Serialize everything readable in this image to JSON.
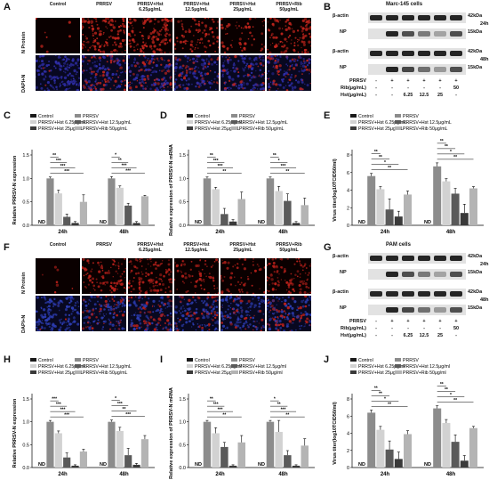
{
  "figure": {
    "panel_labels": [
      "A",
      "B",
      "C",
      "D",
      "E",
      "F",
      "G",
      "H",
      "I",
      "J"
    ]
  },
  "microscopy": {
    "top": {
      "columns": [
        "Control",
        "PRRSV",
        "PRRSV+Hst 6.25μg/mL",
        "PRRSV+Hst 12.5μg/mL",
        "PRRSV+Hst 25μg/mL",
        "PRRSV+Rib 50μg/mL"
      ],
      "rows": [
        "N Protein",
        "DAPI+N"
      ],
      "colors": {
        "red": "#c0241c",
        "blue": "#2f2ea8"
      },
      "red_intensity": [
        0.05,
        1.0,
        0.9,
        0.6,
        0.4,
        0.8
      ]
    },
    "bottom": {
      "columns": [
        "Control",
        "PRRSV",
        "PRRSV+Hst 6.25μg/mL",
        "PRRSV+Hst 12.5μg/mL",
        "PRRSV+Hst 25μg/mL",
        "PRRSV+Rib 50μg/mL"
      ],
      "rows": [
        "N Protein",
        "DAPI+N"
      ],
      "colors": {
        "red": "#b8201a",
        "blue": "#2c3cb0"
      },
      "red_intensity": [
        0.05,
        0.7,
        0.8,
        0.5,
        0.4,
        0.7
      ]
    }
  },
  "western": {
    "top": {
      "title": "Marc-145 cells",
      "bands": [
        "β-actin",
        "NP",
        "β-actin",
        "NP"
      ],
      "kda": [
        "42kDa",
        "15kDa",
        "42kDa",
        "15kDa"
      ],
      "times": [
        "24h",
        "48h"
      ],
      "row_labels": [
        "PRRSV",
        "Rib(μg/mL)",
        "Hst(μg/mL)"
      ],
      "prrsv": [
        "-",
        "+",
        "+",
        "+",
        "+",
        "+"
      ],
      "rib": [
        "-",
        "-",
        "-",
        "-",
        "-",
        "50"
      ],
      "hst": [
        "-",
        "-",
        "6.25",
        "12.5",
        "25",
        "-"
      ],
      "np_intensity_24h": [
        0.0,
        0.9,
        0.7,
        0.5,
        0.3,
        0.7
      ],
      "np_intensity_48h": [
        0.0,
        0.9,
        0.75,
        0.55,
        0.35,
        0.7
      ]
    },
    "bottom": {
      "title": "PAM cells",
      "bands": [
        "β-actin",
        "NP",
        "β-actin",
        "NP"
      ],
      "kda": [
        "42kDa",
        "15kDa",
        "42kDa",
        "15kDa"
      ],
      "times": [
        "24h",
        "48h"
      ],
      "row_labels": [
        "PRRSV",
        "Rib(μg/mL)",
        "Hst(μg/mL)"
      ],
      "prrsv": [
        "-",
        "+",
        "+",
        "+",
        "+",
        "+"
      ],
      "rib": [
        "-",
        "-",
        "-",
        "-",
        "-",
        "50"
      ],
      "hst": [
        "-",
        "-",
        "6.25",
        "12.5",
        "25",
        "-"
      ],
      "np_intensity_24h": [
        0.0,
        0.9,
        0.7,
        0.5,
        0.3,
        0.7
      ],
      "np_intensity_48h": [
        0.0,
        0.9,
        0.75,
        0.55,
        0.35,
        0.7
      ]
    }
  },
  "chart_data": [
    {
      "id": "C",
      "type": "bar",
      "ylabel": "Relative PRRSV-N expression",
      "categories": [
        "24h",
        "48h"
      ],
      "ylim": [
        0,
        1.5
      ],
      "yticks": [
        0.0,
        0.5,
        1.0,
        1.5
      ],
      "legend": [
        "Control",
        "PRRSV",
        "PRRSV+Hst 6.25μg/mL",
        "PRRSV+Hst 12.5μg/mL",
        "PRRSV+Hst 25μg/mL",
        "PRRSV+Rib 50μg/mL"
      ],
      "nd_label": "ND",
      "series": [
        {
          "name": "Control",
          "values": [
            0,
            0
          ],
          "errors": [
            0,
            0
          ]
        },
        {
          "name": "PRRSV",
          "values": [
            1.0,
            1.0
          ],
          "errors": [
            0.03,
            0.04
          ]
        },
        {
          "name": "PRRSV+Hst 6.25μg/mL",
          "values": [
            0.68,
            0.8
          ],
          "errors": [
            0.07,
            0.04
          ]
        },
        {
          "name": "PRRSV+Hst 12.5μg/mL",
          "values": [
            0.18,
            0.42
          ],
          "errors": [
            0.06,
            0.05
          ]
        },
        {
          "name": "PRRSV+Hst 25μg/mL",
          "values": [
            0.05,
            0.05
          ],
          "errors": [
            0.03,
            0.03
          ]
        },
        {
          "name": "PRRSV+Rib 50μg/mL",
          "values": [
            0.5,
            0.62
          ],
          "errors": [
            0.15,
            0.02
          ]
        }
      ],
      "sig": [
        [
          "***",
          "***",
          "***",
          "**"
        ],
        [
          "***",
          "***",
          "**",
          "*"
        ]
      ]
    },
    {
      "id": "D",
      "type": "bar",
      "ylabel": "Relative expression of PRRSV-N mRNA",
      "categories": [
        "24h",
        "48h"
      ],
      "ylim": [
        0,
        1.5
      ],
      "yticks": [
        0.0,
        0.5,
        1.0,
        1.5
      ],
      "legend": [
        "Control",
        "PRRSV",
        "PRRSV+Hst 6.25μg/mL",
        "PRRSV+Hst 12.5μg/mL",
        "PRRSV+Hst 25μg/mL",
        "PRRSV+Rib 50μg/mL"
      ],
      "nd_label": "ND",
      "series": [
        {
          "name": "Control",
          "values": [
            0,
            0
          ],
          "errors": [
            0,
            0
          ]
        },
        {
          "name": "PRRSV",
          "values": [
            1.0,
            1.0
          ],
          "errors": [
            0.03,
            0.03
          ]
        },
        {
          "name": "PRRSV+Hst 6.25μg/mL",
          "values": [
            0.77,
            0.73
          ],
          "errors": [
            0.04,
            0.1
          ]
        },
        {
          "name": "PRRSV+Hst 12.5μg/mL",
          "values": [
            0.24,
            0.52
          ],
          "errors": [
            0.12,
            0.15
          ]
        },
        {
          "name": "PRRSV+Hst 25μg/mL",
          "values": [
            0.08,
            0.05
          ],
          "errors": [
            0.04,
            0.03
          ]
        },
        {
          "name": "PRRSV+Rib 50μg/mL",
          "values": [
            0.56,
            0.43
          ],
          "errors": [
            0.15,
            0.15
          ]
        }
      ],
      "sig": [
        [
          "**",
          "***",
          "***",
          "**"
        ],
        [
          "**",
          "***",
          "*",
          "**"
        ]
      ]
    },
    {
      "id": "E",
      "type": "bar",
      "ylabel": "Virus titer(log10TCID50/ml)",
      "categories": [
        "24h",
        "48h"
      ],
      "ylim": [
        0,
        8
      ],
      "yticks": [
        0,
        2,
        4,
        6,
        8
      ],
      "legend": [
        "Control",
        "PRRSV",
        "PRRSV+Hst 6.25μg/mL",
        "PRRSV+Hst 12.5μg/mL",
        "PRRSV+Hst 25μg/mL",
        "PRRSV+Rib 50μg/mL"
      ],
      "nd_label": "ND",
      "series": [
        {
          "name": "Control",
          "values": [
            0,
            0
          ],
          "errors": [
            0,
            0
          ]
        },
        {
          "name": "PRRSV",
          "values": [
            5.6,
            6.7
          ],
          "errors": [
            0.3,
            0.4
          ]
        },
        {
          "name": "PRRSV+Hst 6.25μg/mL",
          "values": [
            4.1,
            5.0
          ],
          "errors": [
            0.3,
            0.3
          ]
        },
        {
          "name": "PRRSV+Hst 12.5μg/mL",
          "values": [
            1.8,
            3.6
          ],
          "errors": [
            1.2,
            0.6
          ]
        },
        {
          "name": "PRRSV+Hst 25μg/mL",
          "values": [
            1.0,
            1.4
          ],
          "errors": [
            0.6,
            1.0
          ]
        },
        {
          "name": "PRRSV+Rib 50μg/mL",
          "values": [
            3.5,
            4.2
          ],
          "errors": [
            0.4,
            0.2
          ]
        }
      ],
      "sig": [
        [
          "**",
          "*",
          "**",
          "**"
        ],
        [
          "**",
          "*",
          "**",
          "**"
        ]
      ]
    },
    {
      "id": "H",
      "type": "bar",
      "ylabel": "Relative PRRSV-N expression",
      "categories": [
        "24h",
        "48h"
      ],
      "ylim": [
        0,
        1.5
      ],
      "yticks": [
        0.0,
        0.5,
        1.0,
        1.5
      ],
      "legend": [
        "Control",
        "PRRSV",
        "PRRSV+Hst 6.25μg/mL",
        "PRRSV+Hst 12.5μg/mL",
        "PRRSV+Hst 25μg/mL",
        "PRRSV+Rib 50μg/mL"
      ],
      "nd_label": "ND",
      "series": [
        {
          "name": "Control",
          "values": [
            0,
            0
          ],
          "errors": [
            0,
            0
          ]
        },
        {
          "name": "PRRSV",
          "values": [
            1.0,
            1.0
          ],
          "errors": [
            0.03,
            0.04
          ]
        },
        {
          "name": "PRRSV+Hst 6.25μg/mL",
          "values": [
            0.75,
            0.8
          ],
          "errors": [
            0.05,
            0.08
          ]
        },
        {
          "name": "PRRSV+Hst 12.5μg/mL",
          "values": [
            0.22,
            0.27
          ],
          "errors": [
            0.1,
            0.15
          ]
        },
        {
          "name": "PRRSV+Hst 25μg/mL",
          "values": [
            0.04,
            0.06
          ],
          "errors": [
            0.02,
            0.03
          ]
        },
        {
          "name": "PRRSV+Rib 50μg/mL",
          "values": [
            0.35,
            0.62
          ],
          "errors": [
            0.05,
            0.08
          ]
        }
      ],
      "sig": [
        [
          "***",
          "***",
          "***",
          "***"
        ],
        [
          "***",
          "**",
          "***",
          "*"
        ]
      ]
    },
    {
      "id": "I",
      "type": "bar",
      "ylabel": "Relative expression of PRRSV-N mRNA",
      "categories": [
        "24h",
        "48h"
      ],
      "ylim": [
        0,
        1.5
      ],
      "yticks": [
        0.0,
        0.5,
        1.0,
        1.5
      ],
      "legend": [
        "Control",
        "PRRSV",
        "PRRSV+Hst 6.25μg/ml",
        "PRRSV+Hst 12.5μg/ml",
        "PRRSV+Hst 25μg/ml",
        "PRRSV+Rib 50μg/ml"
      ],
      "nd_label": "ND",
      "series": [
        {
          "name": "Control",
          "values": [
            0,
            0
          ],
          "errors": [
            0,
            0
          ]
        },
        {
          "name": "PRRSV",
          "values": [
            1.0,
            1.0
          ],
          "errors": [
            0.03,
            0.03
          ]
        },
        {
          "name": "PRRSV+Hst 6.25μg/ml",
          "values": [
            0.75,
            0.78
          ],
          "errors": [
            0.12,
            0.25
          ]
        },
        {
          "name": "PRRSV+Hst 12.5μg/ml",
          "values": [
            0.45,
            0.27
          ],
          "errors": [
            0.1,
            0.1
          ]
        },
        {
          "name": "PRRSV+Hst 25μg/ml",
          "values": [
            0.04,
            0.04
          ],
          "errors": [
            0.02,
            0.02
          ]
        },
        {
          "name": "PRRSV+Rib 50μg/ml",
          "values": [
            0.55,
            0.48
          ],
          "errors": [
            0.15,
            0.15
          ]
        }
      ],
      "sig": [
        [
          "**",
          "***",
          "***",
          "**"
        ],
        [
          "**",
          "***",
          "**",
          "*"
        ]
      ]
    },
    {
      "id": "J",
      "type": "bar",
      "ylabel": "Virus titer(log10TCID50/ml)",
      "categories": [
        "24h",
        "48h"
      ],
      "ylim": [
        0,
        8
      ],
      "yticks": [
        0,
        2,
        4,
        6,
        8
      ],
      "legend": [
        "Control",
        "PRRSV",
        "PRRSV+Hst 6.25μg/ml",
        "PRRSV+Hst 12.5μg/ml",
        "PRRSV+Hst 25μg/ml",
        "PRRSV+Rib 50μg/ml"
      ],
      "nd_label": "ND",
      "series": [
        {
          "name": "Control",
          "values": [
            0,
            0
          ],
          "errors": [
            0,
            0
          ]
        },
        {
          "name": "PRRSV",
          "values": [
            6.4,
            6.9
          ],
          "errors": [
            0.3,
            0.3
          ]
        },
        {
          "name": "PRRSV+Hst 6.25μg/ml",
          "values": [
            4.4,
            5.2
          ],
          "errors": [
            0.4,
            0.4
          ]
        },
        {
          "name": "PRRSV+Hst 12.5μg/ml",
          "values": [
            2.1,
            3.0
          ],
          "errors": [
            1.0,
            0.8
          ]
        },
        {
          "name": "PRRSV+Hst 25μg/ml",
          "values": [
            1.0,
            0.8
          ],
          "errors": [
            0.8,
            0.6
          ]
        },
        {
          "name": "PRRSV+Rib 50μg/ml",
          "values": [
            3.9,
            4.6
          ],
          "errors": [
            0.4,
            0.2
          ]
        }
      ],
      "sig": [
        [
          "**",
          "*",
          "**",
          "**"
        ],
        [
          "**",
          "*",
          "**",
          "**"
        ]
      ]
    }
  ],
  "style": {
    "bar_colors": [
      "#1a1a1a",
      "#8c8c8c",
      "#d2d2d2",
      "#5a5a5a",
      "#3a3a3a",
      "#b4b4b4"
    ]
  }
}
